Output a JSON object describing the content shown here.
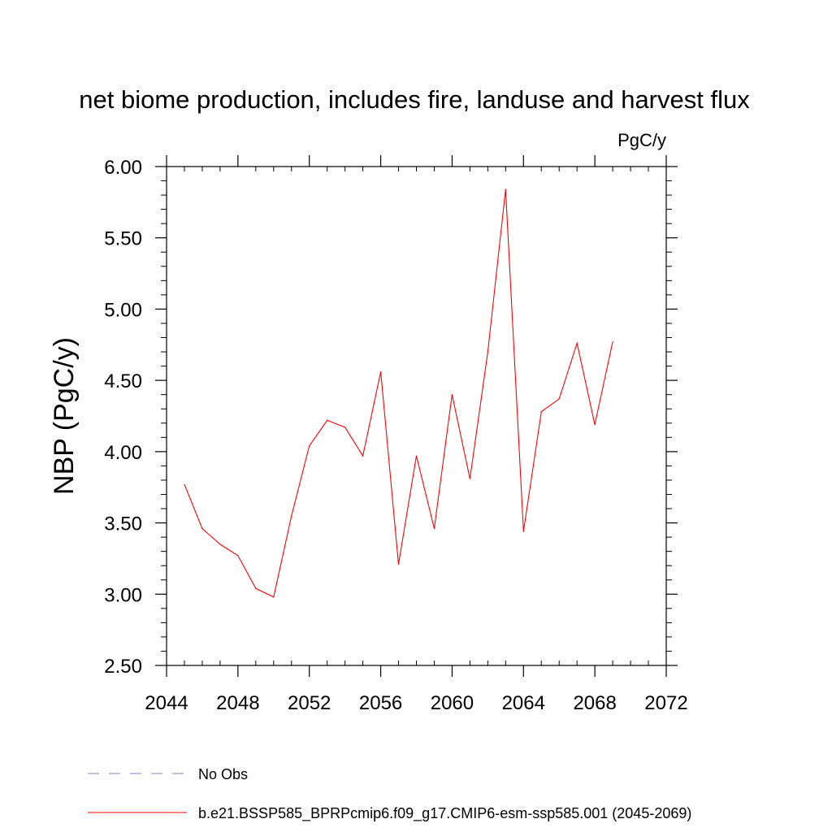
{
  "chart_data": {
    "type": "line",
    "title": "net biome production, includes fire, landuse and harvest flux",
    "units": "PgC/y",
    "ylabel": "NBP  (PgC/y)",
    "xlabel": "",
    "xlim": [
      2044,
      2072
    ],
    "ylim": [
      2.5,
      6.0
    ],
    "x_ticks": [
      2044,
      2048,
      2052,
      2056,
      2060,
      2064,
      2068,
      2072
    ],
    "x_tick_labels": [
      "2044",
      "2048",
      "2052",
      "2056",
      "2060",
      "2064",
      "2068",
      "2072"
    ],
    "y_ticks": [
      2.5,
      3.0,
      3.5,
      4.0,
      4.5,
      5.0,
      5.5,
      6.0
    ],
    "y_tick_labels": [
      "2.50",
      "3.00",
      "3.50",
      "4.00",
      "4.50",
      "5.00",
      "5.50",
      "6.00"
    ],
    "grid": false,
    "series": [
      {
        "name": "b.e21.BSSP585_BPRPcmip6.f09_g17.CMIP6-esm-ssp585.001 (2045-2069)",
        "color": "#ff0000",
        "line_style": "solid",
        "x": [
          2045,
          2046,
          2047,
          2048,
          2049,
          2050,
          2051,
          2052,
          2053,
          2054,
          2055,
          2056,
          2057,
          2058,
          2059,
          2060,
          2061,
          2062,
          2063,
          2064,
          2065,
          2066,
          2067,
          2068,
          2069
        ],
        "y": [
          3.77,
          3.46,
          3.35,
          3.27,
          3.04,
          2.98,
          3.55,
          4.04,
          4.22,
          4.17,
          3.97,
          4.56,
          3.21,
          3.97,
          3.46,
          4.4,
          3.81,
          4.7,
          5.84,
          3.44,
          4.28,
          4.37,
          4.76,
          4.19,
          4.77
        ]
      }
    ],
    "legend": {
      "position": "bottom",
      "entries": [
        {
          "label": "No Obs",
          "color": "#8080c0",
          "line_style": "dashed"
        },
        {
          "label": "b.e21.BSSP585_BPRPcmip6.f09_g17.CMIP6-esm-ssp585.001 (2045-2069)",
          "color": "#ff0000",
          "line_style": "solid"
        }
      ]
    }
  }
}
